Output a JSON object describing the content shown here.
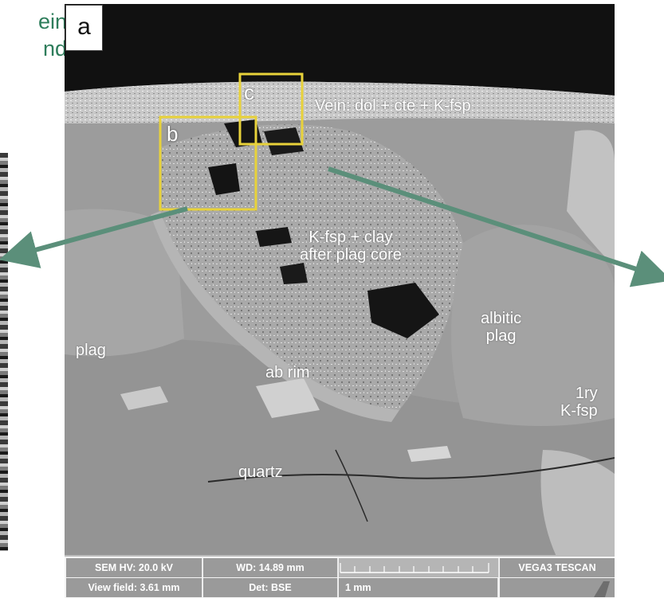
{
  "caption": {
    "text": "ein\nnd",
    "color": "#2e7d5b"
  },
  "panel": {
    "letter": "a"
  },
  "subpanels": [
    {
      "letter": "b"
    },
    {
      "letter": "c"
    }
  ],
  "mineral_labels": {
    "vein": "Vein: dol + cte + K-fsp",
    "core": "K-fsp + clay\nafter plag core",
    "plag_left": "plag",
    "albitic": "albitic\nplag",
    "ab_rim": "ab rim",
    "primary_kfsp": "1ry\nK-fsp",
    "quartz": "quartz"
  },
  "sem_info": {
    "hv": "SEM HV: 20.0 kV",
    "wd": "WD: 14.89 mm",
    "brand": "VEGA3 TESCAN",
    "view_field": "View field: 3.61 mm",
    "det": "Det: BSE",
    "scale": "1 mm"
  },
  "colors": {
    "arrow": "#5b8f7a",
    "highlight_box": "#e8d23a"
  }
}
